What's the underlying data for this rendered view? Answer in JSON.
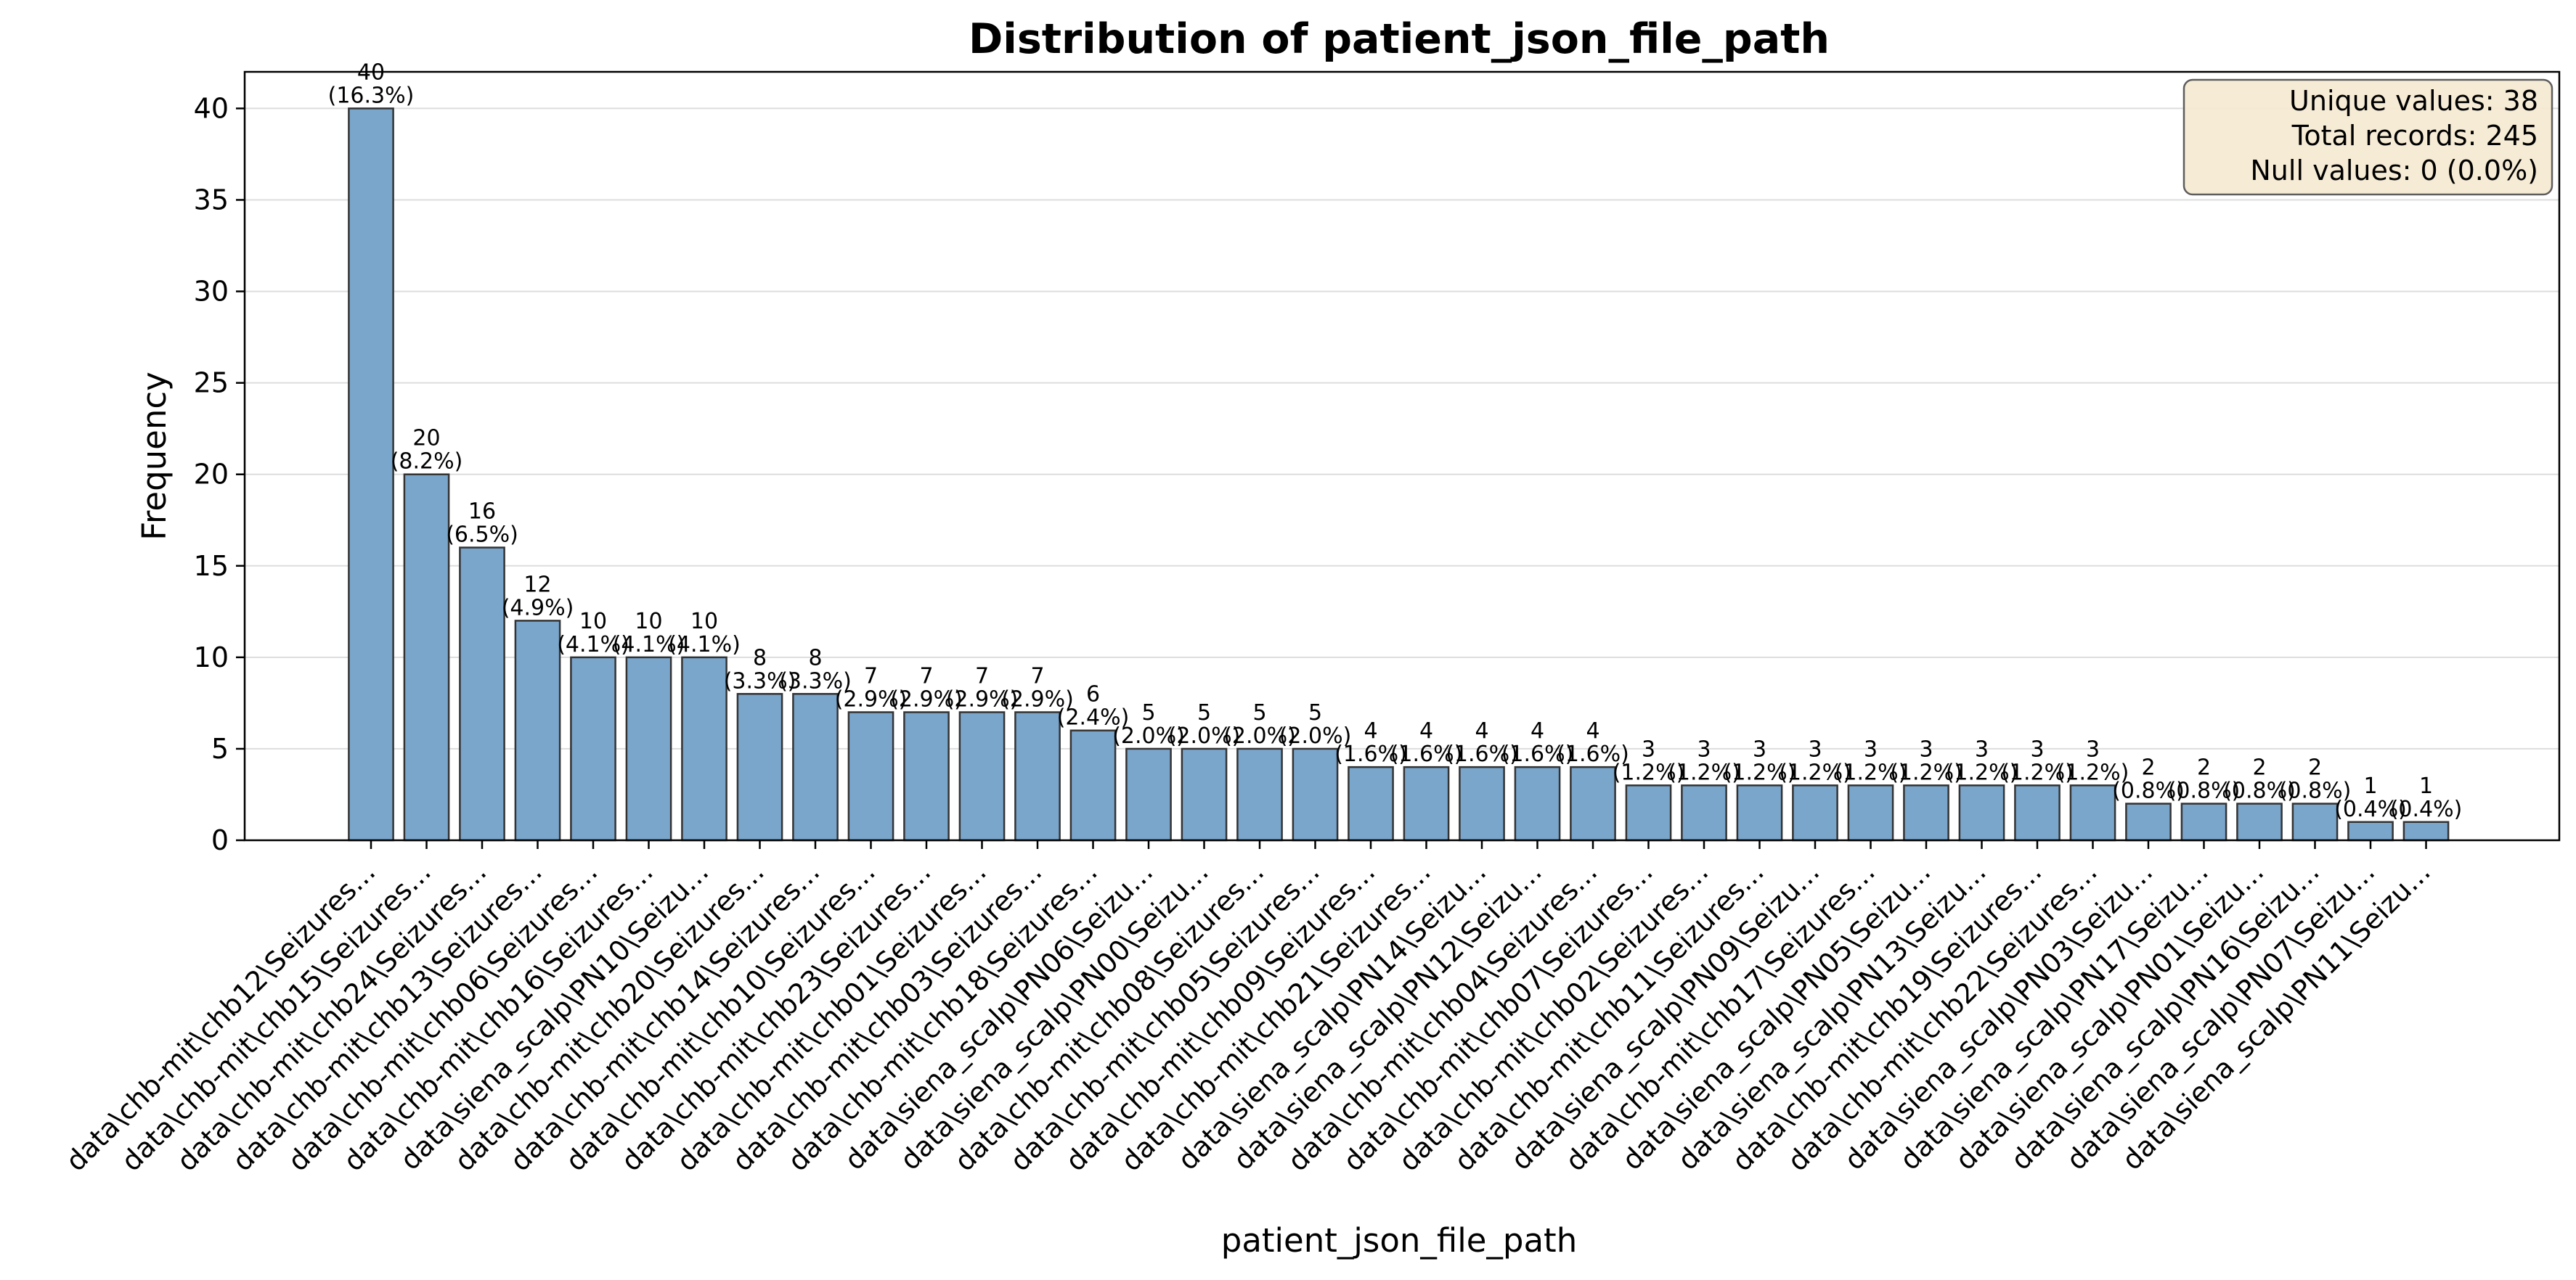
{
  "chart_data": {
    "type": "bar",
    "title": "Distribution of patient_json_file_path",
    "xlabel": "patient_json_file_path",
    "ylabel": "Frequency",
    "ylim": [
      0,
      42
    ],
    "yticks": [
      "0",
      "5",
      "10",
      "15",
      "20",
      "25",
      "30",
      "35",
      "40"
    ],
    "grid": "y-axis only",
    "categories": [
      "data\\chb-mit\\chb12\\Seizures...",
      "data\\chb-mit\\chb15\\Seizures...",
      "data\\chb-mit\\chb24\\Seizures...",
      "data\\chb-mit\\chb13\\Seizures...",
      "data\\chb-mit\\chb06\\Seizures...",
      "data\\chb-mit\\chb16\\Seizures...",
      "data\\siena_scalp\\PN10\\Seizu...",
      "data\\chb-mit\\chb20\\Seizures...",
      "data\\chb-mit\\chb14\\Seizures...",
      "data\\chb-mit\\chb10\\Seizures...",
      "data\\chb-mit\\chb23\\Seizures...",
      "data\\chb-mit\\chb01\\Seizures...",
      "data\\chb-mit\\chb03\\Seizures...",
      "data\\chb-mit\\chb18\\Seizures...",
      "data\\siena_scalp\\PN06\\Seizu...",
      "data\\siena_scalp\\PN00\\Seizu...",
      "data\\chb-mit\\chb08\\Seizures...",
      "data\\chb-mit\\chb05\\Seizures...",
      "data\\chb-mit\\chb09\\Seizures...",
      "data\\chb-mit\\chb21\\Seizures...",
      "data\\siena_scalp\\PN14\\Seizu...",
      "data\\siena_scalp\\PN12\\Seizu...",
      "data\\chb-mit\\chb04\\Seizures...",
      "data\\chb-mit\\chb07\\Seizures...",
      "data\\chb-mit\\chb02\\Seizures...",
      "data\\chb-mit\\chb11\\Seizures...",
      "data\\siena_scalp\\PN09\\Seizu...",
      "data\\chb-mit\\chb17\\Seizures...",
      "data\\siena_scalp\\PN05\\Seizu...",
      "data\\siena_scalp\\PN13\\Seizu...",
      "data\\chb-mit\\chb19\\Seizures...",
      "data\\chb-mit\\chb22\\Seizures...",
      "data\\siena_scalp\\PN03\\Seizu...",
      "data\\siena_scalp\\PN17\\Seizu...",
      "data\\siena_scalp\\PN01\\Seizu...",
      "data\\siena_scalp\\PN16\\Seizu...",
      "data\\siena_scalp\\PN07\\Seizu...",
      "data\\siena_scalp\\PN11\\Seizu..."
    ],
    "values": [
      40,
      20,
      16,
      12,
      10,
      10,
      10,
      8,
      8,
      7,
      7,
      7,
      7,
      6,
      5,
      5,
      5,
      5,
      4,
      4,
      4,
      4,
      4,
      3,
      3,
      3,
      3,
      3,
      3,
      3,
      3,
      3,
      2,
      2,
      2,
      2,
      1,
      1
    ],
    "percent_labels": [
      "(16.3%)",
      "(8.2%)",
      "(6.5%)",
      "(4.9%)",
      "(4.1%)",
      "(4.1%)",
      "(4.1%)",
      "(3.3%)",
      "(3.3%)",
      "(2.9%)",
      "(2.9%)",
      "(2.9%)",
      "(2.9%)",
      "(2.4%)",
      "(2.0%)",
      "(2.0%)",
      "(2.0%)",
      "(2.0%)",
      "(1.6%)",
      "(1.6%)",
      "(1.6%)",
      "(1.6%)",
      "(1.6%)",
      "(1.2%)",
      "(1.2%)",
      "(1.2%)",
      "(1.2%)",
      "(1.2%)",
      "(1.2%)",
      "(1.2%)",
      "(1.2%)",
      "(1.2%)",
      "(0.8%)",
      "(0.8%)",
      "(0.8%)",
      "(0.8%)",
      "(0.4%)",
      "(0.4%)"
    ],
    "bar_color": "#7aa6cc",
    "bar_edge_color": "#333333",
    "stats_box": {
      "lines": [
        "Unique values: 38",
        "Total records: 245",
        "Null values: 0 (0.0%)"
      ],
      "placement": "top-right",
      "background": "#f6ead3"
    }
  }
}
